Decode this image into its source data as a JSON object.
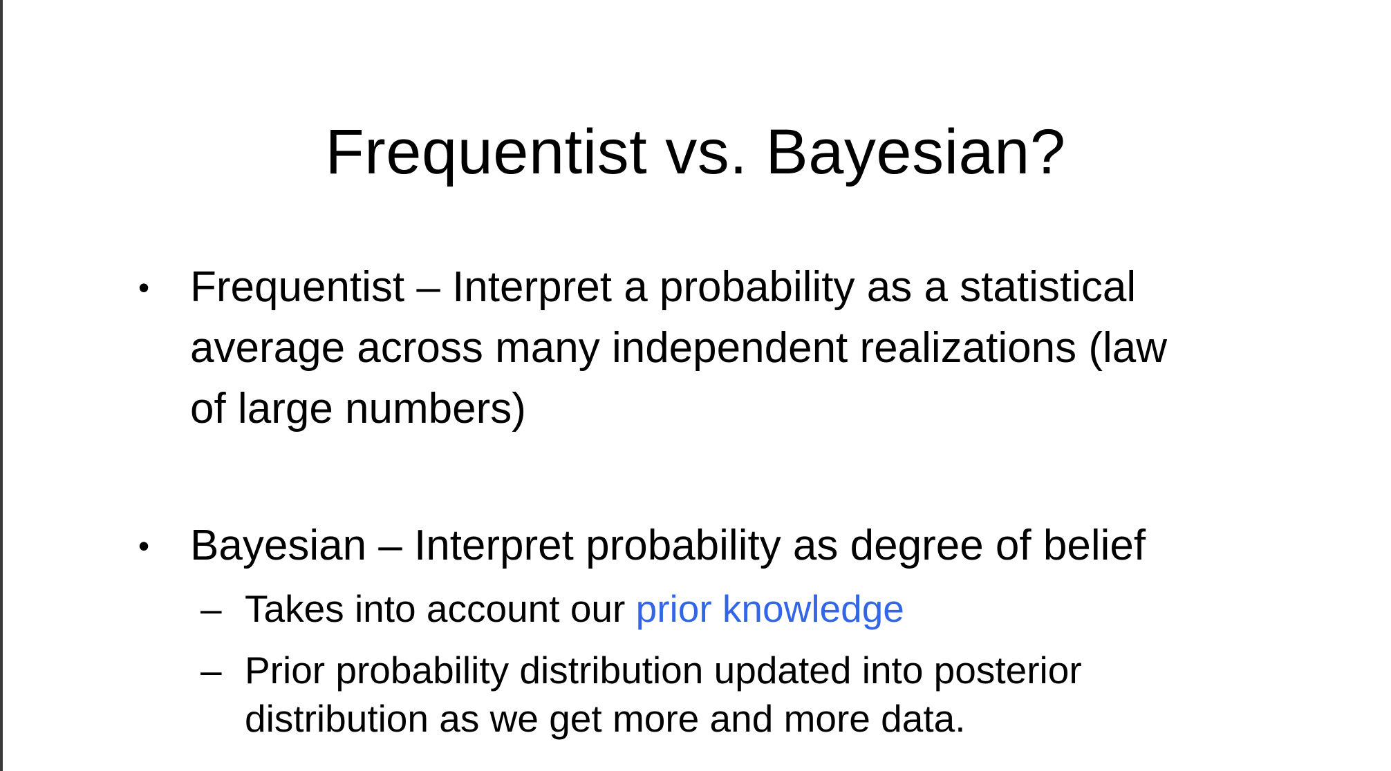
{
  "slide": {
    "title": "Frequentist vs. Bayesian?",
    "bullets": [
      {
        "marker": "•",
        "lines": [
          "Frequentist – Interpret a probability as a statistical",
          "average across many independent realizations (law",
          "of large numbers)"
        ]
      },
      {
        "marker": "•",
        "lines": [
          "Bayesian – Interpret probability as degree of belief"
        ],
        "sub_items": [
          {
            "marker": "–",
            "text_before": "Takes into account our ",
            "highlight": "prior knowledge"
          },
          {
            "marker": "–",
            "lines": [
              "Prior probability distribution updated into posterior",
              "distribution as we get more and more data."
            ]
          }
        ]
      }
    ]
  },
  "colors": {
    "highlight": "#3366e6",
    "text": "#000000",
    "background": "#ffffff"
  }
}
